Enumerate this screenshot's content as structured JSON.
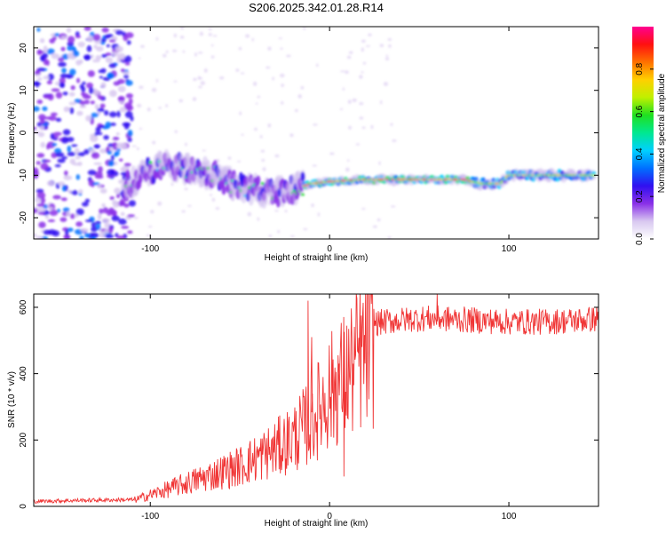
{
  "chart_data": [
    {
      "type": "heatmap",
      "title": "S206.2025.342.01.28.R14",
      "xlabel": "Height of straight line (km)",
      "ylabel": "Frequency (Hz)",
      "xlim": [
        -165,
        150
      ],
      "ylim": [
        -25,
        25
      ],
      "xticks": [
        -100,
        0,
        100
      ],
      "xtick_labels": [
        "-100",
        "0",
        "100"
      ],
      "yticks": [
        -20,
        -10,
        0,
        10,
        20
      ],
      "ytick_labels": [
        "-20",
        "-10",
        "0",
        "10",
        "20"
      ],
      "ridge": {
        "x": [
          -115,
          -105,
          -95,
          -85,
          -75,
          -65,
          -55,
          -45,
          -35,
          -25,
          -18,
          -10,
          0,
          20,
          40,
          60,
          75,
          85,
          95,
          100,
          110,
          120,
          130,
          140,
          148
        ],
        "y": [
          -13,
          -10,
          -8,
          -8,
          -9,
          -10,
          -12,
          -13,
          -14,
          -14,
          -13,
          -12,
          -11.5,
          -11,
          -11,
          -11,
          -11,
          -12,
          -12,
          -10,
          -10,
          -10,
          -10,
          -10,
          -10
        ]
      },
      "colorbar": {
        "label": "Normalized spectral amplitude",
        "range": [
          0,
          1
        ],
        "ticks": [
          0.0,
          0.2,
          0.4,
          0.6,
          0.8
        ],
        "tick_labels": [
          "0.0",
          "0.2",
          "0.4",
          "0.6",
          "0.8"
        ],
        "colors": [
          "#ffffff",
          "#d8c8f0",
          "#8a30e8",
          "#3010f0",
          "#0070ff",
          "#00d0ff",
          "#00e890",
          "#20e020",
          "#c0f000",
          "#ffd000",
          "#ff7000",
          "#ff1010",
          "#ff0090"
        ]
      }
    },
    {
      "type": "line",
      "xlabel": "Height of straight line (km)",
      "ylabel": "SNR (10 * v/v)",
      "xlim": [
        -165,
        150
      ],
      "ylim": [
        0,
        640
      ],
      "xticks": [
        -100,
        0,
        100
      ],
      "xtick_labels": [
        "-100",
        "0",
        "100"
      ],
      "yticks": [
        0,
        200,
        400,
        600
      ],
      "ytick_labels": [
        "0",
        "200",
        "400",
        "600"
      ],
      "series": [
        {
          "name": "SNR",
          "color": "#f03535",
          "envelope_x": [
            -165,
            -140,
            -110,
            -100,
            -90,
            -80,
            -70,
            -60,
            -50,
            -40,
            -30,
            -20,
            -15,
            -10,
            -5,
            0,
            5,
            10,
            15,
            20,
            25,
            30,
            40,
            50,
            60,
            80,
            100,
            120,
            140,
            150
          ],
          "envelope_y": [
            15,
            18,
            20,
            40,
            60,
            80,
            100,
            120,
            140,
            170,
            200,
            240,
            270,
            300,
            350,
            400,
            430,
            460,
            500,
            540,
            555,
            560,
            565,
            570,
            570,
            565,
            560,
            560,
            565,
            570
          ],
          "spikes": [
            {
              "x": -12,
              "y": 620
            },
            {
              "x": -10,
              "y": 510
            },
            {
              "x": 5,
              "y": 410
            },
            {
              "x": 8,
              "y": 90
            },
            {
              "x": 16,
              "y": 470
            },
            {
              "x": 60,
              "y": 640
            }
          ]
        }
      ]
    }
  ]
}
